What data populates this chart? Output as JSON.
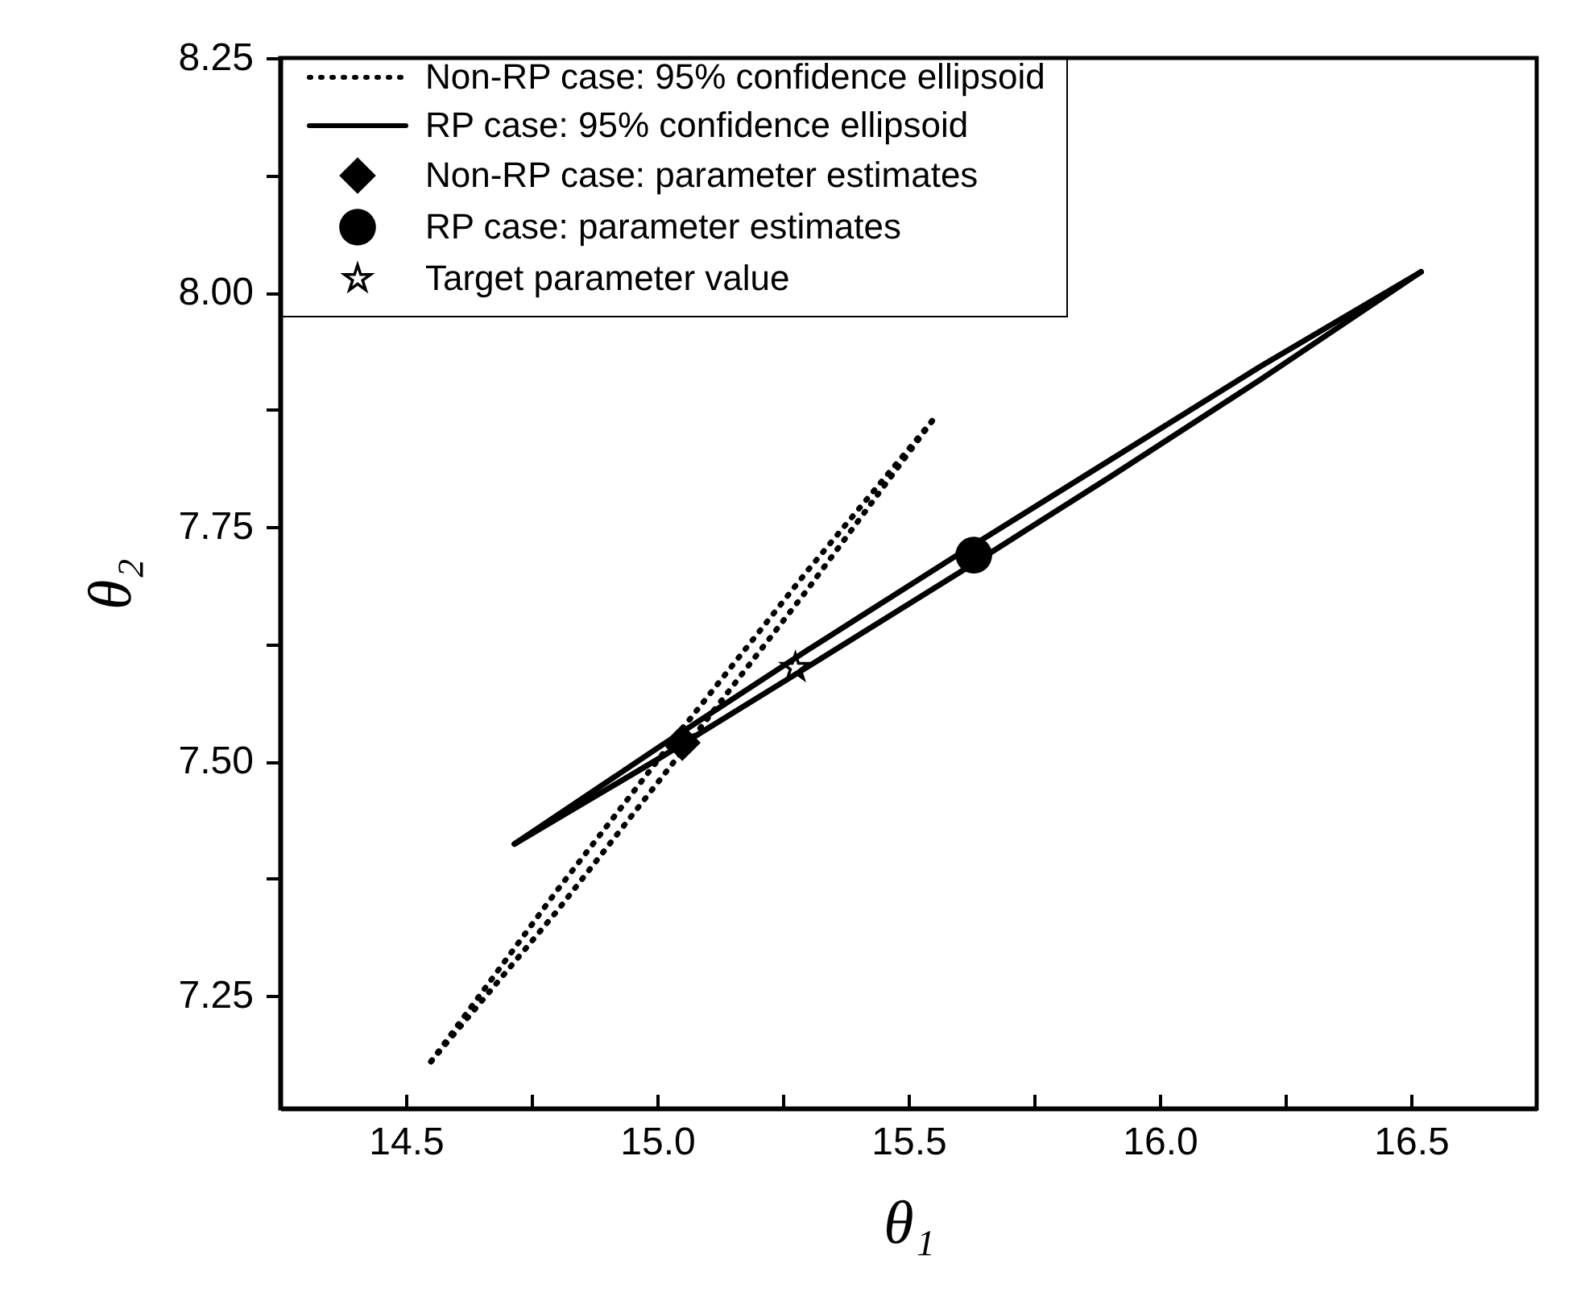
{
  "chart_data": {
    "type": "line",
    "xlabel": "θ₁",
    "ylabel": "θ₂",
    "xlim": [
      14.25,
      16.75
    ],
    "ylim": [
      7.13,
      8.25
    ],
    "xticks": [
      14.5,
      {
        "value": 14.75,
        "label": null
      },
      {
        "value": 15.0,
        "label": "15.0"
      },
      {
        "value": 15.25,
        "label": null
      },
      15.5,
      {
        "value": 15.75,
        "label": null
      },
      {
        "value": 16.0,
        "label": "16.0"
      },
      {
        "value": 16.25,
        "label": null
      },
      16.5
    ],
    "yticks": [
      7.25,
      {
        "value": 7.375,
        "label": null
      },
      {
        "value": 7.5,
        "label": "7.50"
      },
      {
        "value": 7.625,
        "label": null
      },
      7.75,
      {
        "value": 7.875,
        "label": null
      },
      {
        "value": 8.0,
        "label": "8.00"
      },
      {
        "value": 8.125,
        "label": null
      },
      8.25
    ],
    "grid": false,
    "legend": "top left",
    "series": [
      {
        "name": "Non-RP case: 95% confidence ellipsoid",
        "type": "line",
        "line_style": "dotted",
        "marker": "none",
        "color": "#000000",
        "x": [
          14.55,
          14.8,
          15.05,
          15.3,
          15.55
        ],
        "values": [
          7.18,
          7.362,
          7.535,
          7.704,
          7.865
        ]
      },
      {
        "type": "line",
        "line_style": "dotted",
        "marker": "none",
        "color": "#000000",
        "x": [
          14.55,
          14.8,
          15.05,
          15.3,
          15.55
        ],
        "values": [
          7.18,
          7.34,
          7.511,
          7.684,
          7.865
        ]
      },
      {
        "name": "RP case: 95% confidence ellipsoid",
        "type": "line",
        "line_style": "solid",
        "marker": "none",
        "color": "#000000",
        "x": [
          14.716,
          15.0,
          15.3,
          15.6,
          15.9,
          16.2,
          16.52
        ],
        "values": [
          7.412,
          7.514,
          7.619,
          7.721,
          7.821,
          7.921,
          8.022
        ]
      },
      {
        "type": "line",
        "line_style": "solid",
        "marker": "none",
        "color": "#000000",
        "x": [
          14.716,
          15.0,
          15.3,
          15.6,
          15.9,
          16.2,
          16.52
        ],
        "values": [
          7.412,
          7.502,
          7.601,
          7.701,
          7.803,
          7.907,
          8.022
        ]
      },
      {
        "name": "Non-RP case: parameter estimates",
        "type": "scatter",
        "marker": "diamond",
        "color": "#000000",
        "x": [
          15.05
        ],
        "values": [
          7.52
        ]
      },
      {
        "name": "RP case: parameter estimates",
        "type": "scatter",
        "marker": "circle",
        "color": "#000000",
        "x": [
          15.63
        ],
        "values": [
          7.72
        ]
      },
      {
        "name": "Target parameter value",
        "type": "scatter",
        "marker": "star",
        "color": "#000000",
        "x": [
          15.275
        ],
        "values": [
          7.6
        ]
      }
    ]
  }
}
